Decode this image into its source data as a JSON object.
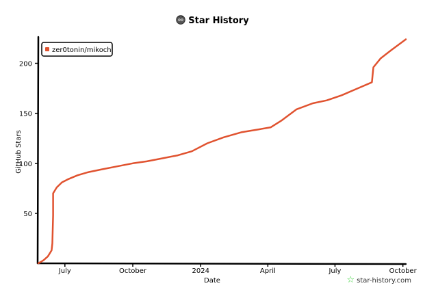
{
  "header": {
    "title": "Star History",
    "logo_icon": "star-history-logo-icon"
  },
  "watermark": {
    "text": "star-history.com",
    "icon": "green-star-icon",
    "icon_color": "#3bd13b"
  },
  "chart_data": {
    "type": "line",
    "title": "Star History",
    "xlabel": "Date",
    "ylabel": "GitHub Stars",
    "x_tick_labels": [
      "July",
      "October",
      "2024",
      "April",
      "July",
      "October"
    ],
    "x_tick_dates": [
      "2023-07-01",
      "2023-10-01",
      "2024-01-01",
      "2024-04-01",
      "2024-07-01",
      "2024-10-01"
    ],
    "y_ticks": [
      50,
      100,
      150,
      200
    ],
    "ylim": [
      0,
      225
    ],
    "xlim": [
      "2023-05-26",
      "2024-10-05"
    ],
    "grid": false,
    "legend": "top-left",
    "series": [
      {
        "name": "zer0tonin/mikochi",
        "color": "#e0522f",
        "points": [
          [
            "2023-05-26",
            0
          ],
          [
            "2023-06-02",
            3
          ],
          [
            "2023-06-08",
            7
          ],
          [
            "2023-06-13",
            13
          ],
          [
            "2023-06-14",
            20
          ],
          [
            "2023-06-15",
            48
          ],
          [
            "2023-06-15",
            70
          ],
          [
            "2023-06-20",
            76
          ],
          [
            "2023-06-27",
            81
          ],
          [
            "2023-07-05",
            84
          ],
          [
            "2023-07-18",
            88
          ],
          [
            "2023-08-01",
            91
          ],
          [
            "2023-08-20",
            94
          ],
          [
            "2023-09-10",
            97
          ],
          [
            "2023-10-01",
            100
          ],
          [
            "2023-10-20",
            102
          ],
          [
            "2023-11-10",
            105
          ],
          [
            "2023-12-01",
            108
          ],
          [
            "2023-12-20",
            112
          ],
          [
            "2024-01-10",
            120
          ],
          [
            "2024-02-01",
            126
          ],
          [
            "2024-02-25",
            131
          ],
          [
            "2024-03-20",
            134
          ],
          [
            "2024-04-05",
            136
          ],
          [
            "2024-04-20",
            143
          ],
          [
            "2024-05-10",
            154
          ],
          [
            "2024-06-01",
            160
          ],
          [
            "2024-06-20",
            163
          ],
          [
            "2024-07-10",
            168
          ],
          [
            "2024-08-01",
            175
          ],
          [
            "2024-08-20",
            181
          ],
          [
            "2024-08-22",
            196
          ],
          [
            "2024-09-01",
            205
          ],
          [
            "2024-09-15",
            213
          ],
          [
            "2024-10-05",
            224
          ]
        ]
      }
    ]
  }
}
